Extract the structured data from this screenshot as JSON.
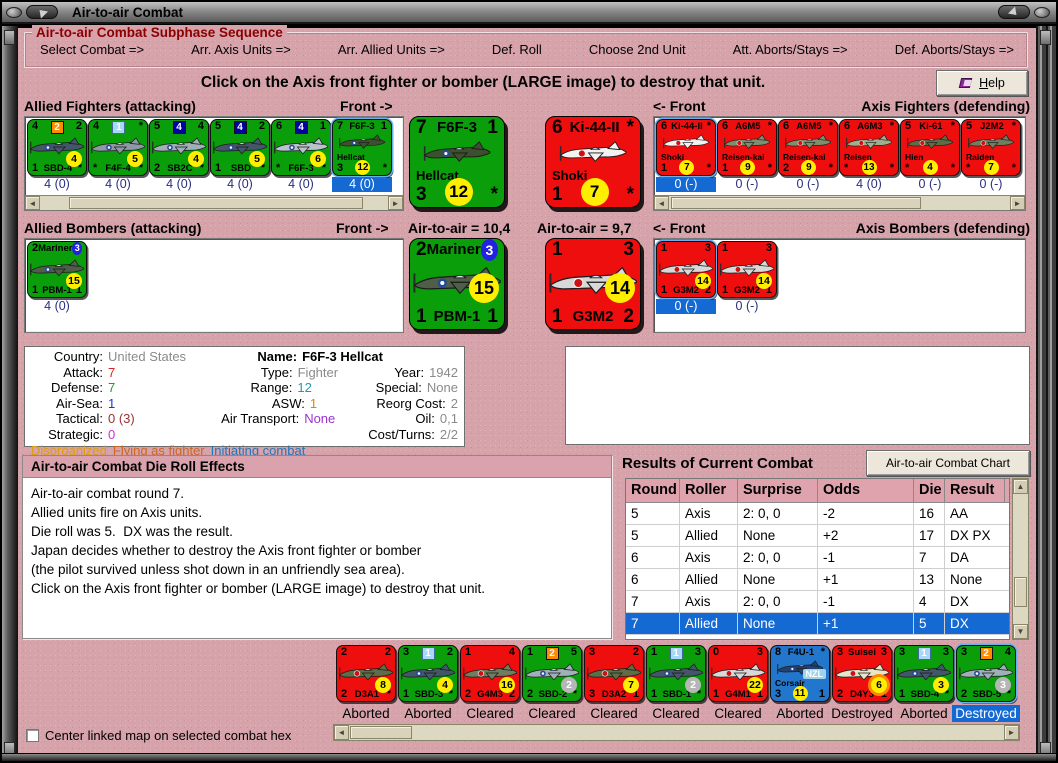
{
  "window": {
    "title": "Air-to-air Combat"
  },
  "sequence": {
    "title": "Air-to-air Combat Subphase Sequence",
    "steps": [
      "Select Combat =>",
      "Arr. Axis Units =>",
      "Arr. Allied Units =>",
      "Def. Roll",
      "Choose 2nd Unit",
      "Att. Aborts/Stays =>",
      "Def. Aborts/Stays =>"
    ]
  },
  "instruction": "Click on the Axis front fighter or bomber (LARGE image) to destroy that unit.",
  "help_button": "Help",
  "labels": {
    "allied_fighters": "Allied Fighters (attacking)",
    "front_arrow_right": "Front ->",
    "front_arrow_left": "<- Front",
    "axis_fighters": "Axis Fighters (defending)",
    "allied_bombers": "Allied Bombers (attacking)",
    "axis_bombers": "Axis Bombers (defending)",
    "allied_air_value": "Air-to-air = 10,4",
    "axis_air_value": "Air-to-air = 9,7"
  },
  "allied_fighters": {
    "units": [
      {
        "name": "SBD-4",
        "color": "green",
        "pc": "#44566a",
        "rc": "allied",
        "tl": "4",
        "box": {
          "v": "2",
          "s": "orange"
        },
        "tr": "2",
        "fc": {
          "v": "4",
          "s": "yellow"
        },
        "bl": "1",
        "bname": "SBD-4",
        "br": "*",
        "strip": "4 (0)"
      },
      {
        "name": "F4F-4",
        "color": "green",
        "pc": "#8d9aa5",
        "rc": "allied",
        "tl": "4",
        "box": {
          "v": "1",
          "s": "lightblue"
        },
        "tr": "*",
        "fc": {
          "v": "5",
          "s": "yellow"
        },
        "bl": "*",
        "bname": "F4F-4",
        "br": "*",
        "strip": "4 (0)"
      },
      {
        "name": "SB2C",
        "color": "green",
        "pc": "#9fb0b8",
        "rc": "allied",
        "tl": "5",
        "box": {
          "v": "4",
          "s": "darkblue"
        },
        "tr": "4",
        "fc": {
          "v": "4",
          "s": "yellow"
        },
        "bl": "2",
        "bname": "SB2C",
        "br": "*",
        "strip": "4 (0)"
      },
      {
        "name": "SBD",
        "color": "green",
        "pc": "#44566a",
        "rc": "allied",
        "tl": "5",
        "box": {
          "v": "4",
          "s": "darkblue"
        },
        "tr": "2",
        "fc": {
          "v": "5",
          "s": "yellow"
        },
        "bl": "1",
        "bname": "SBD",
        "br": "*",
        "strip": "4 (0)"
      },
      {
        "name": "F6F-3",
        "color": "green",
        "pc": "#b8c4cc",
        "rc": "allied",
        "tl": "6",
        "box": {
          "v": "4",
          "s": "darkblue"
        },
        "tr": "1",
        "fc": {
          "v": "6",
          "s": "yellow"
        },
        "bl": "*",
        "bname": "F6F-3",
        "br": "*",
        "strip": "4 (0)"
      },
      {
        "name": "F6F-3 Hellcat",
        "color": "green",
        "pc": "#3c4f2e",
        "rc": "allied",
        "tl": "7",
        "tname": "F6F-3",
        "tr": "1",
        "label": "Hellcat",
        "bl": "3",
        "bc": {
          "v": "12",
          "s": "yellow"
        },
        "br": "*",
        "strip": "4 (0)",
        "strip_sel": true,
        "sel": true
      }
    ],
    "large": {
      "name": "F6F-3 Hellcat",
      "color": "green",
      "pc": "#3c4f2e",
      "rc": "allied",
      "tl": "7",
      "tname": "F6F-3",
      "tr": "1",
      "label": "Hellcat",
      "bl": "3",
      "bc": {
        "v": "12",
        "s": "yellow"
      },
      "br": "*"
    }
  },
  "axis_fighters": {
    "units": [
      {
        "name": "Ki-44-II Shoki",
        "color": "red",
        "pc": "#f2f2f2",
        "rc": "axis",
        "tl": "6",
        "tname": "Ki-44-II",
        "tr": "*",
        "label": "Shoki",
        "bl": "1",
        "bc": {
          "v": "7",
          "s": "yellow"
        },
        "br": "*",
        "strip": "0 (-)",
        "strip_sel": true,
        "sel": true
      },
      {
        "name": "A6M5 Reisen-kai",
        "color": "red",
        "pc": "#7e8f6e",
        "rc": "axis",
        "tl": "6",
        "tname": "A6M5",
        "tr": "*",
        "label": "Reisen-kai",
        "bl": "1",
        "bc": {
          "v": "9",
          "s": "yellow"
        },
        "br": "*",
        "strip": "0 (-)"
      },
      {
        "name": "A6M5 Reisen-kai 2",
        "color": "red",
        "pc": "#7e8f6e",
        "rc": "axis",
        "tl": "6",
        "tname": "A6M5",
        "tr": "*",
        "label": "Reisen-kai",
        "bl": "2",
        "bc": {
          "v": "9",
          "s": "yellow"
        },
        "br": "*",
        "strip": "0 (-)"
      },
      {
        "name": "A6M3 Reisen",
        "color": "red",
        "pc": "#9fae8e",
        "rc": "axis",
        "tl": "6",
        "tname": "A6M3",
        "tr": "*",
        "label": "Reisen",
        "bl": "*",
        "bc": {
          "v": "13",
          "s": "yellow"
        },
        "br": "*",
        "strip": "4 (0)"
      },
      {
        "name": "Ki-61 Hien",
        "color": "red",
        "pc": "#5d6e46",
        "rc": "axis",
        "tl": "5",
        "tname": "Ki-61",
        "tr": "*",
        "label": "Hien",
        "bl": "*",
        "bc": {
          "v": "4",
          "s": "yellow"
        },
        "br": "*",
        "strip": "0 (-)"
      },
      {
        "name": "J2M2 Raiden",
        "color": "red",
        "pc": "#6e7e5e",
        "rc": "axis",
        "tl": "5",
        "tname": "J2M2",
        "tr": "*",
        "label": "Raiden",
        "bl": "*",
        "bc": {
          "v": "7",
          "s": "yellow"
        },
        "br": "*",
        "strip": "0 (-)"
      }
    ],
    "large": {
      "name": "Ki-44-II Shoki",
      "color": "red",
      "pc": "#f2f2f2",
      "rc": "axis",
      "tl": "6",
      "tname": "Ki-44-II",
      "tr": "*",
      "label": "Shoki",
      "bl": "1",
      "bc": {
        "v": "7",
        "s": "yellow"
      },
      "br": "*"
    }
  },
  "allied_bombers": {
    "units": [
      {
        "name": "PBM-1 Mariner",
        "color": "green",
        "pc": "#4e5e48",
        "rc": "allied",
        "tl": "2",
        "tname": "Mariner",
        "trc": {
          "v": "3",
          "s": "blue"
        },
        "fc": {
          "v": "15",
          "s": "yellow"
        },
        "bl": "1",
        "bname": "PBM-1",
        "br": "1",
        "strip": "4 (0)"
      }
    ],
    "large": {
      "name": "PBM-1 Mariner",
      "color": "green",
      "pc": "#4e5e48",
      "rc": "allied",
      "tl": "2",
      "tname": "Mariner",
      "trc": {
        "v": "3",
        "s": "blue"
      },
      "fc": {
        "v": "15",
        "s": "yellow"
      },
      "bl": "1",
      "bname": "PBM-1",
      "br": "1"
    }
  },
  "axis_bombers": {
    "units": [
      {
        "name": "G3M2",
        "color": "red",
        "pc": "#d8d8d8",
        "rc": "axis",
        "tl": "1",
        "tr": "3",
        "fc": {
          "v": "14",
          "s": "yellow"
        },
        "bl": "1",
        "bname": "G3M2",
        "br": "2",
        "strip": "0 (-)",
        "strip_sel": true,
        "sel": true
      },
      {
        "name": "G3M2 2",
        "color": "red",
        "pc": "#d8d8d8",
        "rc": "axis",
        "tl": "1",
        "tr": "3",
        "fc": {
          "v": "14",
          "s": "yellow"
        },
        "bl": "1",
        "bname": "G3M2",
        "br": "1",
        "strip": "0 (-)"
      }
    ],
    "large": {
      "name": "G3M2",
      "color": "red",
      "pc": "#d8d8d8",
      "rc": "axis",
      "tl": "1",
      "tr": "3",
      "fc": {
        "v": "14",
        "s": "yellow"
      },
      "bl": "1",
      "bname": "G3M2",
      "br": "2"
    }
  },
  "unit_details": {
    "rows": [
      [
        {
          "l": "Country:",
          "v": "United States",
          "c": "#8a8a8a"
        },
        {
          "l": "Name:",
          "v": "F6F-3 Hellcat",
          "c": "#000000",
          "b": true
        },
        null
      ],
      [
        {
          "l": "Attack:",
          "v": "7",
          "c": "#dd2222"
        },
        {
          "l": "Type:",
          "v": "Fighter",
          "c": "#8a8a8a"
        },
        {
          "l": "Year:",
          "v": "1942",
          "c": "#8a8a8a"
        }
      ],
      [
        {
          "l": "Defense:",
          "v": "7",
          "c": "#229922"
        },
        {
          "l": "Range:",
          "v": "12",
          "c": "#2299aa"
        },
        {
          "l": "Special:",
          "v": "None",
          "c": "#8a8a8a"
        }
      ],
      [
        {
          "l": "Air-Sea:",
          "v": "1",
          "c": "#2233cc"
        },
        {
          "l": "ASW:",
          "v": "1",
          "c": "#dd8800"
        },
        {
          "l": "Reorg Cost:",
          "v": "2",
          "c": "#8a8a8a"
        }
      ],
      [
        {
          "l": "Tactical:",
          "v": "0 (3)",
          "c": "#993333"
        },
        {
          "l": "Air Transport:",
          "v": "None",
          "c": "#9933cc"
        },
        {
          "l": "Oil:",
          "v": "0,1",
          "c": "#8a8a8a"
        }
      ],
      [
        {
          "l": "Strategic:",
          "v": "0",
          "c": "#cc33cc"
        },
        null,
        {
          "l": "Cost/Turns:",
          "v": "2/2",
          "c": "#8a8a8a"
        }
      ]
    ],
    "status_flags": [
      {
        "t": "Disorganized",
        "c": "#e09c10"
      },
      {
        "t": "Flying as fighter",
        "c": "#cc6622"
      },
      {
        "t": "Initiating combat",
        "c": "#2277bb"
      }
    ]
  },
  "die_roll_panel": {
    "title": "Air-to-air Combat Die Roll Effects",
    "lines": [
      "Air-to-air combat round 7.",
      "Allied units fire on Axis units.",
      "Die roll was 5.  DX was the result.",
      "Japan decides whether to destroy the Axis front fighter or bomber",
      "(the pilot survived unless shot down in an unfriendly sea area).",
      "Click on the Axis front fighter or bomber (LARGE image) to destroy that unit."
    ]
  },
  "results": {
    "title": "Results of Current Combat",
    "chart_button": "Air-to-air Combat Chart",
    "columns": [
      "Round",
      "Roller",
      "Surprise",
      "Odds",
      "Die",
      "Result"
    ],
    "rows": [
      [
        "5",
        "Axis",
        "2: 0, 0",
        "-2",
        "16",
        "AA"
      ],
      [
        "5",
        "Allied",
        "None",
        "+2",
        "17",
        "DX PX"
      ],
      [
        "6",
        "Axis",
        "2: 0, 0",
        "-1",
        "7",
        "DA"
      ],
      [
        "6",
        "Allied",
        "None",
        "+1",
        "13",
        "None"
      ],
      [
        "7",
        "Axis",
        "2: 0, 0",
        "-1",
        "4",
        "DX"
      ],
      [
        "7",
        "Allied",
        "None",
        "+1",
        "5",
        "DX"
      ]
    ],
    "selected_row": 5
  },
  "result_units": {
    "units": [
      {
        "name": "D3A1",
        "color": "red",
        "pc": "#5d6e46",
        "rc": "axis",
        "tl": "2",
        "tr": "2",
        "fc": {
          "v": "8",
          "s": "yellow"
        },
        "bl": "2",
        "bname": "D3A1",
        "br": "*",
        "status": "Aborted"
      },
      {
        "name": "SBD-3",
        "color": "green",
        "pc": "#44566a",
        "rc": "allied",
        "tl": "3",
        "box": {
          "v": "1",
          "s": "lightblue"
        },
        "tr": "2",
        "fc": {
          "v": "4",
          "s": "yellow"
        },
        "bl": "1",
        "bname": "SBD-3",
        "br": "*",
        "status": "Aborted"
      },
      {
        "name": "G4M3",
        "color": "red",
        "pc": "#6e7e5e",
        "rc": "axis",
        "tl": "1",
        "tr": "4",
        "fc": {
          "v": "16",
          "s": "yellow"
        },
        "bl": "2",
        "bname": "G4M3",
        "br": "2",
        "status": "Cleared"
      },
      {
        "name": "SBD-2",
        "color": "green",
        "pc": "#9fb0b8",
        "rc": "allied",
        "tl": "1",
        "box": {
          "v": "2",
          "s": "orange"
        },
        "tr": "5",
        "fc": {
          "v": "2",
          "s": "gray"
        },
        "bl": "2",
        "bname": "SBD-2",
        "br": "*",
        "status": "Cleared"
      },
      {
        "name": "D3A2",
        "color": "red",
        "pc": "#5d6e46",
        "rc": "axis",
        "tl": "3",
        "tr": "2",
        "fc": {
          "v": "7",
          "s": "yellow"
        },
        "bl": "3",
        "bname": "D3A2",
        "br": "1",
        "status": "Cleared"
      },
      {
        "name": "SBD-1",
        "color": "green",
        "pc": "#44566a",
        "rc": "allied",
        "tl": "1",
        "box": {
          "v": "1",
          "s": "lightblue"
        },
        "tr": "3",
        "fc": {
          "v": "2",
          "s": "gray"
        },
        "bl": "1",
        "bname": "SBD-1",
        "br": "*",
        "status": "Cleared"
      },
      {
        "name": "G4M1",
        "color": "red",
        "pc": "#d8d8d8",
        "rc": "axis",
        "tl": "0",
        "tr": "3",
        "fc": {
          "v": "22",
          "s": "yellow"
        },
        "bl": "1",
        "bname": "G4M1",
        "br": "1",
        "status": "Cleared"
      },
      {
        "name": "F4U-1 Corsair",
        "color": "blue",
        "pc": "#24406e",
        "rc": "allied",
        "tl": "8",
        "tname": "F4U-1",
        "tr": "*",
        "label": "Corsair",
        "badge": "NZL",
        "bl": "3",
        "bc": {
          "v": "11",
          "s": "yellow"
        },
        "br": "1",
        "status": "Aborted"
      },
      {
        "name": "D4Y3 Suisei",
        "color": "red",
        "pc": "#e8e4c8",
        "rc": "axis",
        "tl": "3",
        "tname": "Suisei",
        "tr": "3",
        "fc": {
          "v": "6",
          "s": "yellow-ring"
        },
        "bl": "2",
        "bname": "D4Y3",
        "br": "1",
        "status": "Destroyed"
      },
      {
        "name": "SBD-4 b",
        "color": "green",
        "pc": "#44566a",
        "rc": "allied",
        "tl": "3",
        "box": {
          "v": "1",
          "s": "lightblue"
        },
        "tr": "3",
        "fc": {
          "v": "3",
          "s": "yellow"
        },
        "bl": "1",
        "bname": "SBD-4",
        "br": "*",
        "status": "Aborted"
      },
      {
        "name": "SBD-5",
        "color": "green",
        "pc": "#9fb0b8",
        "rc": "allied",
        "tl": "3",
        "box": {
          "v": "2",
          "s": "orange"
        },
        "tr": "4",
        "fc": {
          "v": "3",
          "s": "gray"
        },
        "bl": "2",
        "bname": "SBD-5",
        "br": "*",
        "status": "Destroyed",
        "status_sel": true,
        "sel": true
      }
    ]
  },
  "footer": {
    "checkbox_label": "Center linked map on selected combat hex",
    "checked": false
  }
}
